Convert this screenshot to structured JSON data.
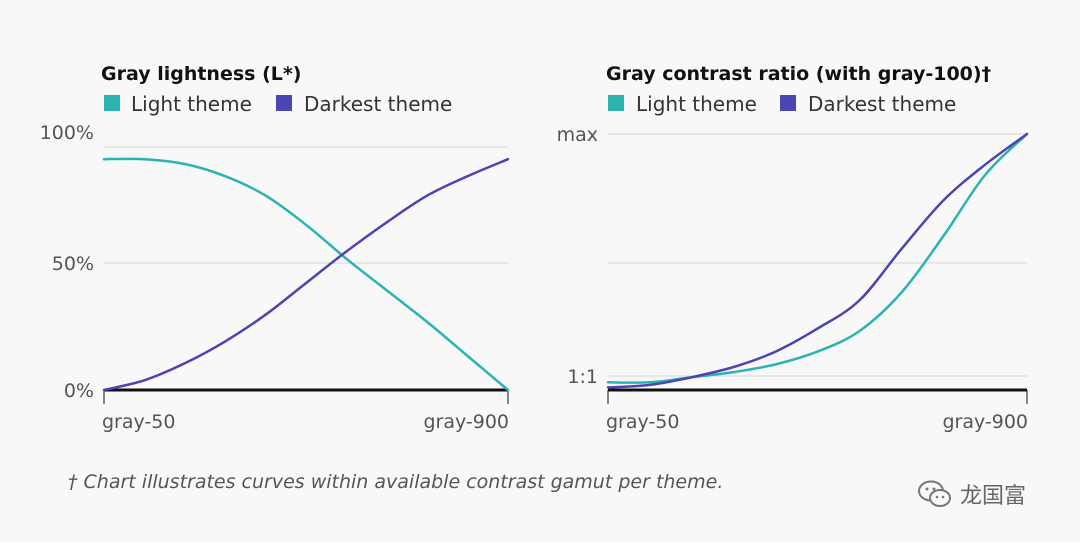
{
  "colors": {
    "light": "#2bb3b0",
    "darkest": "#4a45b3",
    "grid": "#d6d6d6",
    "axis": "#111111"
  },
  "footnote": "† Chart illustrates curves within available contrast gamut per theme.",
  "watermark": "龙国富",
  "chart_data": [
    {
      "type": "line",
      "title": "Gray lightness (L*)",
      "legend": [
        "Light theme",
        "Darkest theme"
      ],
      "x_tick_labels": [
        "gray-50",
        "gray-900"
      ],
      "y_tick_labels": [
        "100%",
        "50%",
        "0%"
      ],
      "ylim": [
        0,
        100
      ],
      "x": [
        0,
        0.1,
        0.2,
        0.3,
        0.4,
        0.5,
        0.6,
        0.7,
        0.8,
        0.9,
        1.0
      ],
      "series": [
        {
          "name": "Light theme",
          "values": [
            95,
            95,
            93,
            88,
            80,
            68,
            54,
            41,
            28,
            14,
            0
          ]
        },
        {
          "name": "Darkest theme",
          "values": [
            0,
            4,
            11,
            20,
            31,
            44,
            57,
            69,
            80,
            88,
            95
          ]
        }
      ]
    },
    {
      "type": "line",
      "title": "Gray contrast ratio (with gray-100)†",
      "legend": [
        "Light theme",
        "Darkest theme"
      ],
      "x_tick_labels": [
        "gray-50",
        "gray-900"
      ],
      "y_tick_labels": [
        "max",
        "1:1"
      ],
      "ylim": [
        0,
        100
      ],
      "x": [
        0,
        0.1,
        0.2,
        0.3,
        0.4,
        0.5,
        0.6,
        0.7,
        0.8,
        0.9,
        1.0
      ],
      "series": [
        {
          "name": "Light theme",
          "values": [
            3,
            3,
            5,
            7,
            10,
            15,
            23,
            38,
            60,
            84,
            100
          ]
        },
        {
          "name": "Darkest theme",
          "values": [
            1,
            2,
            5,
            9,
            15,
            24,
            35,
            55,
            74,
            88,
            100
          ]
        }
      ]
    }
  ]
}
